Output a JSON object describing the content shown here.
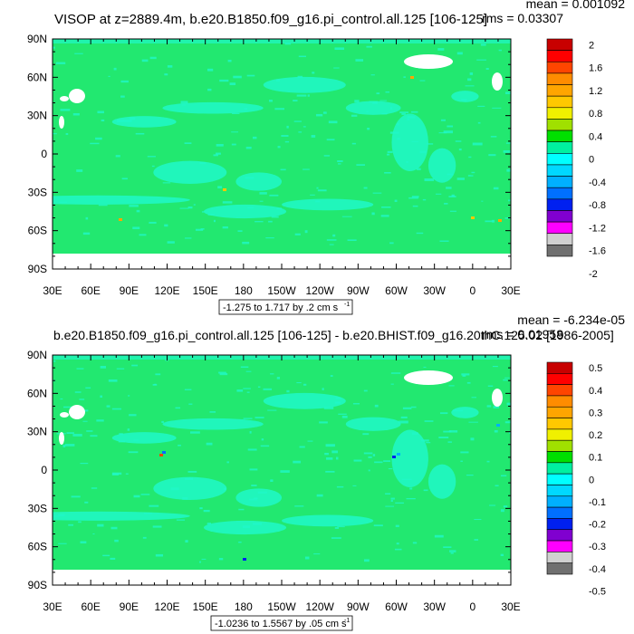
{
  "chart_data": [
    {
      "type": "heatmap",
      "title": "VISOP at z=2889.4m, b.e20.B1850.f09_g16.pi_control.all.125 [106-125]",
      "stats": [
        "mean = 0.001092",
        "rms = 0.03307"
      ],
      "x_ticks": [
        "30E",
        "60E",
        "90E",
        "120E",
        "150E",
        "180",
        "150W",
        "120W",
        "90W",
        "60W",
        "30W",
        "0",
        "30E"
      ],
      "y_ticks": [
        "90N",
        "60N",
        "30N",
        "0",
        "30S",
        "60S",
        "90S"
      ],
      "range_label": "-1.275 to 1.717 by .2 cm s",
      "range_unit_sup": "-1",
      "colorbar_labels": [
        "2",
        "1.6",
        "1.2",
        "0.8",
        "0.4",
        "0",
        "-0.4",
        "-0.8",
        "-1.2",
        "-1.6",
        "-2"
      ],
      "colorbar_colors": [
        "#c80000",
        "#ff0000",
        "#ff4500",
        "#ff8c00",
        "#ffa500",
        "#ffc800",
        "#f0f000",
        "#a0e000",
        "#00e000",
        "#00f0a0",
        "#00ffff",
        "#00d8ff",
        "#00b0ff",
        "#0070ff",
        "#0020f0",
        "#8000d0",
        "#ff00ff",
        "#d0d0d0",
        "#707070"
      ],
      "field_colors": {
        "zero_band": "#22e870",
        "near_zero_neg": "#20f8c8",
        "land": "#ffffff"
      }
    },
    {
      "type": "heatmap",
      "title": "b.e20.B1850.f09_g16.pi_control.all.125 [106-125] - b.e20.BHIST.f09_g16.20thC.125.02 [1986-2005]",
      "stats": [
        "mean = -6.234e-05",
        "rms = 0.01958"
      ],
      "x_ticks": [
        "30E",
        "60E",
        "90E",
        "120E",
        "150E",
        "180",
        "150W",
        "120W",
        "90W",
        "60W",
        "30W",
        "0",
        "30E"
      ],
      "y_ticks": [
        "90N",
        "60N",
        "30N",
        "0",
        "30S",
        "60S",
        "90S"
      ],
      "range_label": "-1.0236 to 1.5567 by .05 cm s",
      "range_unit_sup": "-1",
      "colorbar_labels": [
        "0.5",
        "0.4",
        "0.3",
        "0.2",
        "0.1",
        "0",
        "-0.1",
        "-0.2",
        "-0.3",
        "-0.4",
        "-0.5"
      ],
      "colorbar_colors": [
        "#c80000",
        "#ff0000",
        "#ff4500",
        "#ff8c00",
        "#ffa500",
        "#ffc800",
        "#f0f000",
        "#a0e000",
        "#00e000",
        "#00f0a0",
        "#00ffff",
        "#00d8ff",
        "#00b0ff",
        "#0070ff",
        "#0020f0",
        "#8000d0",
        "#ff00ff",
        "#d0d0d0",
        "#707070"
      ],
      "field_colors": {
        "zero_band": "#22e870",
        "near_zero_neg": "#20f8c8",
        "land": "#ffffff"
      }
    }
  ]
}
